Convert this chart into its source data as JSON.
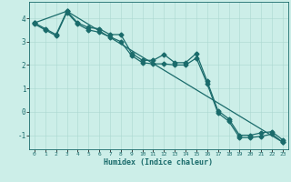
{
  "xlabel": "Humidex (Indice chaleur)",
  "ylabel": "",
  "xlim": [
    -0.5,
    23.5
  ],
  "ylim": [
    -1.6,
    4.7
  ],
  "yticks": [
    -1,
    0,
    1,
    2,
    3,
    4
  ],
  "xticks": [
    0,
    1,
    2,
    3,
    4,
    5,
    6,
    7,
    8,
    9,
    10,
    11,
    12,
    13,
    14,
    15,
    16,
    17,
    18,
    19,
    20,
    21,
    22,
    23
  ],
  "background_color": "#cceee8",
  "line_color": "#1a6b6b",
  "line1_x": [
    0,
    1,
    2,
    3,
    4,
    5,
    6,
    7,
    8,
    9,
    10,
    11,
    12,
    13,
    14,
    15,
    16,
    17,
    18,
    19,
    20,
    21,
    22,
    23
  ],
  "line1_y": [
    3.8,
    3.55,
    3.3,
    4.3,
    3.8,
    3.6,
    3.55,
    3.3,
    3.3,
    2.5,
    2.2,
    2.2,
    2.45,
    2.1,
    2.1,
    2.5,
    1.3,
    0.05,
    -0.3,
    -1.0,
    -1.0,
    -0.9,
    -0.85,
    -1.2
  ],
  "line2_x": [
    0,
    1,
    2,
    3,
    4,
    5,
    6,
    7,
    8,
    9,
    10,
    11,
    12,
    13,
    14,
    15,
    16,
    17,
    18,
    19,
    20,
    21,
    22,
    23
  ],
  "line2_y": [
    3.75,
    3.5,
    3.25,
    4.25,
    3.75,
    3.5,
    3.4,
    3.2,
    3.0,
    2.4,
    2.1,
    2.05,
    2.05,
    2.0,
    2.0,
    2.3,
    1.2,
    -0.05,
    -0.4,
    -1.1,
    -1.1,
    -1.05,
    -0.95,
    -1.3
  ],
  "line3_x": [
    0,
    3,
    23
  ],
  "line3_y": [
    3.8,
    4.3,
    -1.3
  ],
  "markersize": 2.5,
  "linewidth": 0.9
}
